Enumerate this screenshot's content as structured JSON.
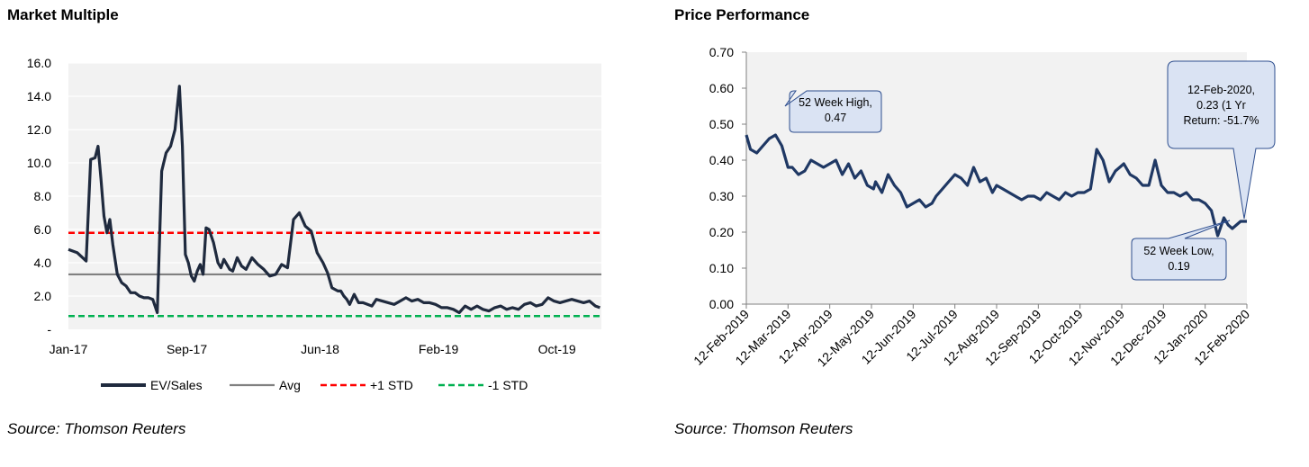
{
  "left": {
    "title": "Market Multiple",
    "source": "Source: Thomson Reuters"
  },
  "right": {
    "title": "Price Performance",
    "source": "Source: Thomson Reuters",
    "callouts": {
      "high_line1": "52 Week High,",
      "high_line2": "0.47",
      "low_line1": "52 Week Low,",
      "low_line2": "0.19",
      "return_line1": "12-Feb-2020,",
      "return_line2": "0.23 (1 Yr",
      "return_line3": "Return: -51.7%"
    }
  },
  "colors": {
    "series": "#1f2a3e",
    "price": "#1f3864",
    "avg": "#808080",
    "plus_std": "#ff0000",
    "minus_std": "#00b050",
    "plot_bg": "#f2f2f2",
    "callout_fill": "#dae3f3",
    "callout_stroke": "#2f4f8f"
  },
  "chart_data": [
    {
      "type": "line",
      "title": "Market Multiple",
      "xlabel": "",
      "ylabel": "",
      "ylim": [
        0,
        16
      ],
      "yticks": [
        "-",
        "2.0",
        "4.0",
        "6.0",
        "8.0",
        "10.0",
        "12.0",
        "14.0",
        "16.0"
      ],
      "xticks": [
        "Jan-17",
        "Sep-17",
        "Jun-18",
        "Feb-19",
        "Oct-19"
      ],
      "grid": true,
      "legend": "bottom",
      "legend_entries": [
        "EV/Sales",
        "Avg",
        "+1 STD",
        "-1 STD"
      ],
      "series": [
        {
          "name": "EV/Sales",
          "x_month_index": [
            0,
            0.6,
            1.2,
            1.5,
            1.8,
            2.0,
            2.2,
            2.4,
            2.6,
            2.8,
            3.0,
            3.3,
            3.6,
            3.9,
            4.2,
            4.5,
            4.8,
            5.1,
            5.4,
            5.7,
            6.0,
            6.3,
            6.6,
            6.9,
            7.2,
            7.5,
            7.7,
            7.9,
            8.1,
            8.3,
            8.5,
            8.7,
            8.9,
            9.1,
            9.3,
            9.5,
            9.8,
            10.1,
            10.3,
            10.5,
            10.7,
            10.9,
            11.1,
            11.4,
            11.7,
            12.0,
            12.4,
            12.8,
            13.2,
            13.6,
            14.0,
            14.4,
            14.8,
            15.2,
            15.6,
            16.0,
            16.4,
            16.8,
            17.2,
            17.5,
            17.8,
            18.0,
            18.2,
            18.4,
            18.6,
            18.8,
            19.0,
            19.3,
            19.6,
            19.9,
            20.2,
            20.5,
            20.8,
            21.2,
            21.6,
            22.0,
            22.4,
            22.8,
            23.2,
            23.6,
            24.0,
            24.4,
            24.8,
            25.2,
            25.6,
            26.0,
            26.4,
            26.8,
            27.2,
            27.6,
            28.0,
            28.4,
            28.8,
            29.2,
            29.6,
            30.0,
            30.4,
            30.8,
            31.2,
            31.6,
            32.0,
            32.4,
            32.8,
            33.2,
            33.6,
            34.0,
            34.4,
            34.8,
            35.2,
            35.6,
            35.9
          ],
          "values": [
            4.8,
            4.6,
            4.1,
            10.2,
            10.3,
            11.0,
            9.0,
            6.8,
            5.8,
            6.6,
            5.1,
            3.3,
            2.8,
            2.6,
            2.2,
            2.2,
            2.0,
            1.9,
            1.9,
            1.8,
            1.0,
            9.5,
            10.6,
            11.0,
            12.0,
            14.6,
            11.0,
            4.5,
            4.0,
            3.2,
            2.9,
            3.5,
            3.9,
            3.3,
            6.1,
            6.0,
            5.2,
            4.0,
            3.7,
            4.2,
            3.9,
            3.6,
            3.5,
            4.3,
            3.8,
            3.6,
            4.3,
            3.9,
            3.6,
            3.2,
            3.3,
            3.9,
            3.7,
            6.6,
            7.0,
            6.2,
            5.9,
            4.6,
            4.0,
            3.4,
            2.5,
            2.4,
            2.3,
            2.3,
            2.0,
            1.8,
            1.5,
            2.1,
            1.6,
            1.6,
            1.5,
            1.4,
            1.8,
            1.7,
            1.6,
            1.5,
            1.7,
            1.9,
            1.7,
            1.8,
            1.6,
            1.6,
            1.5,
            1.3,
            1.3,
            1.2,
            1.0,
            1.4,
            1.2,
            1.4,
            1.2,
            1.1,
            1.3,
            1.4,
            1.2,
            1.3,
            1.2,
            1.5,
            1.6,
            1.4,
            1.5,
            1.9,
            1.7,
            1.6,
            1.7,
            1.8,
            1.7,
            1.6,
            1.7,
            1.4,
            1.3
          ]
        },
        {
          "name": "Avg",
          "value": 3.3
        },
        {
          "name": "+1 STD",
          "value": 5.8
        },
        {
          "name": "-1 STD",
          "value": 0.8
        }
      ]
    },
    {
      "type": "line",
      "title": "Price Performance",
      "xlabel": "",
      "ylabel": "",
      "ylim": [
        0,
        0.7
      ],
      "yticks": [
        "0.00",
        "0.10",
        "0.20",
        "0.30",
        "0.40",
        "0.50",
        "0.60",
        "0.70"
      ],
      "xticks": [
        "12-Feb-2019",
        "12-Mar-2019",
        "12-Apr-2019",
        "12-May-2019",
        "12-Jun-2019",
        "12-Jul-2019",
        "12-Aug-2019",
        "12-Sep-2019",
        "12-Oct-2019",
        "12-Nov-2019",
        "12-Dec-2019",
        "12-Jan-2020",
        "12-Feb-2020"
      ],
      "grid": false,
      "legend": "none",
      "series": [
        {
          "name": "",
          "x_month_index": [
            0,
            0.1,
            0.25,
            0.4,
            0.55,
            0.7,
            0.85,
            1.0,
            1.1,
            1.25,
            1.4,
            1.55,
            1.7,
            1.85,
            2.0,
            2.15,
            2.3,
            2.45,
            2.6,
            2.75,
            2.9,
            3.05,
            3.1,
            3.25,
            3.4,
            3.55,
            3.7,
            3.85,
            4.0,
            4.15,
            4.3,
            4.45,
            4.55,
            4.7,
            4.85,
            5.0,
            5.15,
            5.3,
            5.45,
            5.6,
            5.75,
            5.9,
            6.0,
            6.15,
            6.3,
            6.45,
            6.6,
            6.75,
            6.9,
            7.05,
            7.2,
            7.35,
            7.5,
            7.65,
            7.8,
            7.95,
            8.1,
            8.25,
            8.4,
            8.55,
            8.7,
            8.85,
            8.95,
            9.05,
            9.2,
            9.35,
            9.5,
            9.65,
            9.8,
            9.95,
            10.1,
            10.25,
            10.4,
            10.55,
            10.7,
            10.85,
            11.0,
            11.15,
            11.3,
            11.45,
            11.55,
            11.65,
            11.75,
            11.85,
            12.0
          ],
          "values": [
            0.47,
            0.43,
            0.42,
            0.44,
            0.46,
            0.47,
            0.44,
            0.38,
            0.38,
            0.36,
            0.37,
            0.4,
            0.39,
            0.38,
            0.39,
            0.4,
            0.36,
            0.39,
            0.35,
            0.37,
            0.33,
            0.32,
            0.34,
            0.31,
            0.36,
            0.33,
            0.31,
            0.27,
            0.28,
            0.29,
            0.27,
            0.28,
            0.3,
            0.32,
            0.34,
            0.36,
            0.35,
            0.33,
            0.38,
            0.34,
            0.35,
            0.31,
            0.33,
            0.32,
            0.31,
            0.3,
            0.29,
            0.3,
            0.3,
            0.29,
            0.31,
            0.3,
            0.29,
            0.31,
            0.3,
            0.31,
            0.31,
            0.32,
            0.43,
            0.4,
            0.34,
            0.37,
            0.38,
            0.39,
            0.36,
            0.35,
            0.33,
            0.33,
            0.4,
            0.33,
            0.31,
            0.31,
            0.3,
            0.31,
            0.29,
            0.29,
            0.28,
            0.26,
            0.19,
            0.24,
            0.22,
            0.21,
            0.22,
            0.23,
            0.23
          ]
        }
      ],
      "annotations": [
        "52 Week High, 0.47",
        "52 Week Low, 0.19",
        "12-Feb-2020, 0.23 (1 Yr Return: -51.7%"
      ]
    }
  ]
}
